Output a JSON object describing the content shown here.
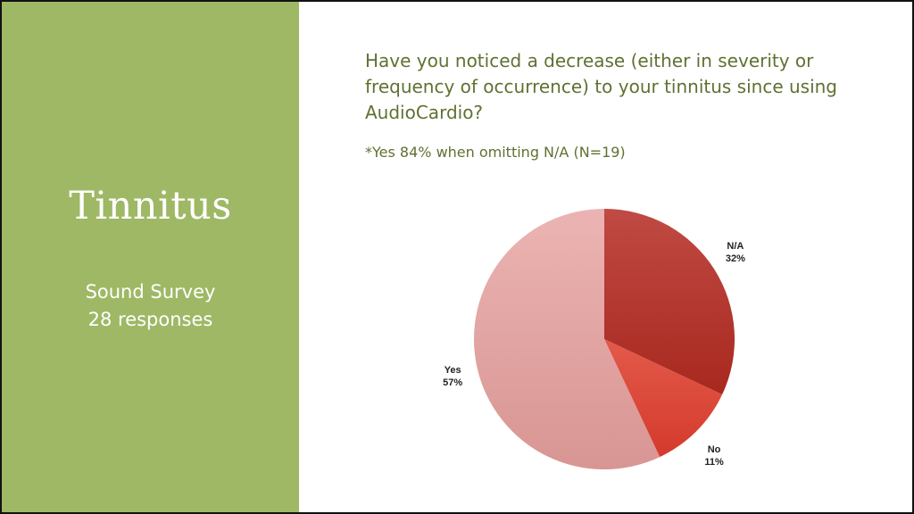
{
  "slide": {
    "title": "Tinnitus",
    "subtitle_line1": "Sound Survey",
    "subtitle_line2": "28 responses",
    "question": "Have you noticed a decrease (either in severity or frequency of occurrence) to your tinnitus since using AudioCardio?",
    "note": "*Yes 84% when omitting N/A (N=19)",
    "colors": {
      "panel_background": "#9fb865",
      "question_text": "#5f7131"
    }
  },
  "chart_data": {
    "type": "pie",
    "title": "",
    "slices": [
      {
        "label": "N/A",
        "value": 32,
        "display": "32%",
        "color": "#b83a2e"
      },
      {
        "label": "No",
        "value": 11,
        "display": "11%",
        "color": "#df4a3a"
      },
      {
        "label": "Yes",
        "value": 57,
        "display": "57%",
        "color": "#e0a5a3"
      }
    ],
    "start_angle_deg": 0,
    "direction": "clockwise"
  }
}
